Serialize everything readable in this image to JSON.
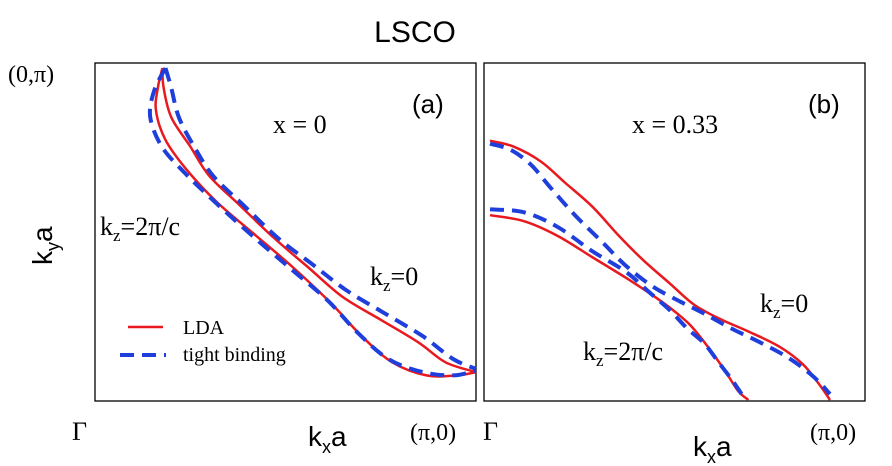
{
  "figure_title": "LSCO",
  "chart_data": [
    {
      "type": "line",
      "panel_label": "(a)",
      "annotation": "x = 0",
      "xlabel": "kxa",
      "ylabel": "kya",
      "corner_labels": {
        "origin": "Γ",
        "x_end": "(π,0)",
        "y_end": "(0,π)"
      },
      "xlim": [
        0,
        1
      ],
      "ylim": [
        0,
        1
      ],
      "legend": {
        "placement": "bottom-left",
        "entries": [
          "LDA",
          "tight binding"
        ]
      },
      "series": [
        {
          "name": "LDA",
          "color": "#e8191f",
          "style": "solid",
          "branches": [
            {
              "label": "kz=0",
              "points": [
                [
                  0.177,
                  1.0
                ],
                [
                  0.18,
                  0.94
                ],
                [
                  0.2,
                  0.85
                ],
                [
                  0.25,
                  0.76
                ],
                [
                  0.3,
                  0.67
                ],
                [
                  0.38,
                  0.58
                ],
                [
                  0.47,
                  0.48
                ],
                [
                  0.56,
                  0.39
                ],
                [
                  0.65,
                  0.3
                ],
                [
                  0.75,
                  0.23
                ],
                [
                  0.85,
                  0.16
                ],
                [
                  0.92,
                  0.1
                ],
                [
                  1.0,
                  0.07
                ]
              ]
            },
            {
              "label": "kz=2π/c",
              "points": [
                [
                  0.177,
                  1.0
                ],
                [
                  0.165,
                  0.94
                ],
                [
                  0.16,
                  0.87
                ],
                [
                  0.185,
                  0.78
                ],
                [
                  0.24,
                  0.69
                ],
                [
                  0.32,
                  0.59
                ],
                [
                  0.42,
                  0.49
                ],
                [
                  0.52,
                  0.39
                ],
                [
                  0.62,
                  0.28
                ],
                [
                  0.7,
                  0.18
                ],
                [
                  0.78,
                  0.1
                ],
                [
                  0.87,
                  0.06
                ],
                [
                  0.95,
                  0.06
                ],
                [
                  1.0,
                  0.07
                ]
              ]
            }
          ]
        },
        {
          "name": "tight binding",
          "color": "#1f3fdd",
          "style": "dashed",
          "branches": [
            {
              "label": "kz=0",
              "points": [
                [
                  0.185,
                  1.0
                ],
                [
                  0.2,
                  0.94
                ],
                [
                  0.22,
                  0.85
                ],
                [
                  0.26,
                  0.76
                ],
                [
                  0.31,
                  0.67
                ],
                [
                  0.39,
                  0.58
                ],
                [
                  0.48,
                  0.48
                ],
                [
                  0.57,
                  0.4
                ],
                [
                  0.66,
                  0.32
                ],
                [
                  0.76,
                  0.25
                ],
                [
                  0.86,
                  0.18
                ],
                [
                  0.94,
                  0.11
                ],
                [
                  1.0,
                  0.08
                ]
              ]
            },
            {
              "label": "kz=2π/c",
              "points": [
                [
                  0.185,
                  1.0
                ],
                [
                  0.155,
                  0.93
                ],
                [
                  0.145,
                  0.85
                ],
                [
                  0.175,
                  0.76
                ],
                [
                  0.235,
                  0.68
                ],
                [
                  0.315,
                  0.59
                ],
                [
                  0.41,
                  0.49
                ],
                [
                  0.51,
                  0.39
                ],
                [
                  0.61,
                  0.29
                ],
                [
                  0.69,
                  0.19
                ],
                [
                  0.77,
                  0.11
                ],
                [
                  0.86,
                  0.07
                ],
                [
                  0.94,
                  0.06
                ],
                [
                  1.0,
                  0.075
                ]
              ]
            }
          ]
        }
      ]
    },
    {
      "type": "line",
      "panel_label": "(b)",
      "annotation": "x = 0.33",
      "xlabel": "kxa",
      "ylabel": "",
      "corner_labels": {
        "origin": "Γ",
        "x_end": "(π,0)"
      },
      "xlim": [
        0,
        1
      ],
      "ylim": [
        0,
        1
      ],
      "series": [
        {
          "name": "LDA",
          "color": "#e8191f",
          "style": "solid",
          "branches": [
            {
              "label": "kz=0",
              "points": [
                [
                  0.0,
                  0.87
                ],
                [
                  0.07,
                  0.85
                ],
                [
                  0.15,
                  0.8
                ],
                [
                  0.22,
                  0.73
                ],
                [
                  0.3,
                  0.65
                ],
                [
                  0.38,
                  0.55
                ],
                [
                  0.45,
                  0.47
                ],
                [
                  0.53,
                  0.39
                ],
                [
                  0.6,
                  0.32
                ],
                [
                  0.68,
                  0.27
                ],
                [
                  0.76,
                  0.23
                ],
                [
                  0.85,
                  0.18
                ],
                [
                  0.92,
                  0.12
                ],
                [
                  0.97,
                  0.05
                ],
                [
                  1.0,
                  0.0
                ]
              ]
            },
            {
              "label": "kz=2π/c",
              "points": [
                [
                  0.0,
                  0.62
                ],
                [
                  0.1,
                  0.6
                ],
                [
                  0.2,
                  0.55
                ],
                [
                  0.3,
                  0.48
                ],
                [
                  0.4,
                  0.41
                ],
                [
                  0.48,
                  0.35
                ],
                [
                  0.54,
                  0.3
                ],
                [
                  0.59,
                  0.25
                ],
                [
                  0.64,
                  0.18
                ],
                [
                  0.69,
                  0.1
                ],
                [
                  0.73,
                  0.03
                ],
                [
                  0.76,
                  0.0
                ]
              ]
            }
          ]
        },
        {
          "name": "tight binding",
          "color": "#1f3fdd",
          "style": "dashed",
          "branches": [
            {
              "label": "kz=0",
              "points": [
                [
                  0.0,
                  0.86
                ],
                [
                  0.06,
                  0.84
                ],
                [
                  0.12,
                  0.79
                ],
                [
                  0.18,
                  0.71
                ],
                [
                  0.25,
                  0.62
                ],
                [
                  0.33,
                  0.53
                ],
                [
                  0.4,
                  0.45
                ],
                [
                  0.48,
                  0.38
                ],
                [
                  0.56,
                  0.33
                ],
                [
                  0.63,
                  0.29
                ],
                [
                  0.71,
                  0.24
                ],
                [
                  0.8,
                  0.19
                ],
                [
                  0.88,
                  0.14
                ],
                [
                  0.95,
                  0.08
                ],
                [
                  1.0,
                  0.02
                ]
              ]
            },
            {
              "label": "kz=2π/c",
              "points": [
                [
                  0.0,
                  0.64
                ],
                [
                  0.1,
                  0.63
                ],
                [
                  0.2,
                  0.58
                ],
                [
                  0.3,
                  0.5
                ],
                [
                  0.4,
                  0.43
                ],
                [
                  0.47,
                  0.36
                ],
                [
                  0.53,
                  0.3
                ],
                [
                  0.58,
                  0.24
                ],
                [
                  0.63,
                  0.19
                ],
                [
                  0.67,
                  0.13
                ],
                [
                  0.71,
                  0.07
                ],
                [
                  0.74,
                  0.02
                ]
              ]
            }
          ]
        }
      ]
    }
  ],
  "labels": {
    "kz_zero": "kz=0",
    "kz_two_pi": "kz=2π/c"
  },
  "colors": {
    "lda": "#e8191f",
    "tight_binding": "#1f3fdd",
    "axes": "#000000"
  }
}
